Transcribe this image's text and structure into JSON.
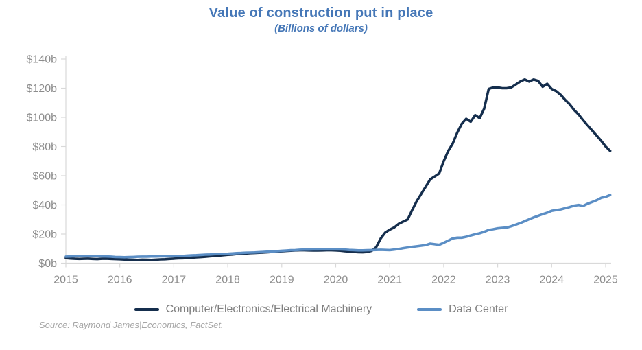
{
  "header": {
    "title": "Value of construction put in place",
    "subtitle": "(Billions of dollars)"
  },
  "legend": [
    {
      "label": "Computer/Electronics/Electrical Machinery",
      "color": "#152e4d"
    },
    {
      "label": "Data Center",
      "color": "#5b8ec5"
    }
  ],
  "source": "Source: Raymond James|Economics, FactSet.",
  "colors": {
    "title_blue": "#4577b7",
    "series_dark_navy": "#152e4d",
    "series_light_blue": "#5b8ec5",
    "axis_line_gray": "#d9d9d9",
    "axis_label_gray": "#8c8c8c",
    "legend_text_gray": "#7f7f7f",
    "source_text_gray": "#a6a6a6",
    "background": "#ffffff"
  },
  "chart_data": {
    "type": "line",
    "title": "Value of construction put in place",
    "subtitle": "(Billions of dollars)",
    "grid": false,
    "legend_position": "bottom",
    "x_axis": {
      "start_year": 2015,
      "interval": "monthly",
      "tick_labels": [
        "2015",
        "2016",
        "2017",
        "2018",
        "2019",
        "2020",
        "2021",
        "2022",
        "2023",
        "2024",
        "2025"
      ]
    },
    "y_axis": {
      "min": 0,
      "max": 140,
      "step": 20,
      "tick_labels": [
        "$0b",
        "$20b",
        "$40b",
        "$60b",
        "$80b",
        "$100b",
        "$120b",
        "$140b"
      ]
    },
    "series": [
      {
        "name": "Computer/Electronics/Electrical Machinery",
        "color": "#152e4d",
        "values": [
          3.5,
          3.2,
          3.0,
          2.9,
          3.0,
          3.1,
          2.9,
          2.8,
          3.0,
          3.1,
          2.9,
          2.8,
          2.7,
          2.5,
          2.4,
          2.3,
          2.2,
          2.4,
          2.3,
          2.2,
          2.4,
          2.6,
          2.7,
          2.9,
          3.1,
          3.3,
          3.4,
          3.6,
          3.8,
          4.0,
          4.2,
          4.4,
          4.7,
          5.0,
          5.2,
          5.5,
          5.8,
          6.0,
          6.3,
          6.5,
          6.7,
          6.9,
          7.0,
          7.2,
          7.4,
          7.6,
          7.8,
          8.0,
          8.2,
          8.4,
          8.6,
          8.8,
          8.9,
          8.9,
          8.8,
          8.7,
          8.7,
          8.8,
          8.9,
          8.9,
          8.8,
          8.6,
          8.3,
          8.0,
          7.8,
          7.6,
          7.5,
          7.7,
          8.5,
          11.0,
          17.0,
          21.0,
          23.0,
          24.5,
          27.0,
          28.5,
          30.0,
          36.5,
          42.5,
          47.5,
          52.5,
          57.5,
          59.5,
          61.5,
          70.0,
          77.0,
          82.0,
          89.5,
          95.5,
          99.0,
          97.0,
          101.5,
          99.5,
          106.0,
          119.5,
          120.5,
          120.5,
          120.0,
          120.0,
          120.5,
          122.5,
          124.5,
          126.0,
          124.5,
          126.0,
          125.0,
          121.0,
          123.0,
          119.5,
          118.0,
          115.5,
          112.0,
          109.0,
          105.0,
          102.0,
          98.0,
          94.5,
          91.0,
          87.5,
          84.0,
          80.0,
          77.0
        ]
      },
      {
        "name": "Data Center",
        "color": "#5b8ec5",
        "values": [
          4.5,
          4.6,
          4.8,
          4.9,
          5.0,
          5.0,
          4.9,
          4.8,
          4.7,
          4.6,
          4.5,
          4.3,
          4.2,
          4.1,
          4.2,
          4.3,
          4.4,
          4.5,
          4.5,
          4.6,
          4.6,
          4.7,
          4.7,
          4.8,
          4.8,
          4.9,
          5.0,
          5.2,
          5.4,
          5.5,
          5.7,
          5.9,
          6.0,
          6.2,
          6.3,
          6.4,
          6.5,
          6.7,
          6.9,
          7.0,
          7.2,
          7.3,
          7.4,
          7.6,
          7.7,
          7.9,
          8.1,
          8.3,
          8.5,
          8.7,
          8.9,
          9.0,
          9.2,
          9.3,
          9.3,
          9.4,
          9.4,
          9.5,
          9.5,
          9.5,
          9.5,
          9.4,
          9.3,
          9.1,
          9.0,
          8.8,
          8.8,
          8.9,
          9.0,
          9.1,
          9.2,
          9.1,
          9.0,
          9.3,
          9.7,
          10.3,
          10.8,
          11.2,
          11.6,
          12.0,
          12.4,
          13.4,
          13.0,
          12.6,
          14.0,
          15.5,
          17.0,
          17.5,
          17.5,
          18.1,
          19.0,
          19.8,
          20.5,
          21.5,
          22.8,
          23.3,
          23.9,
          24.2,
          24.4,
          25.3,
          26.4,
          27.5,
          28.8,
          30.1,
          31.4,
          32.5,
          33.6,
          34.6,
          35.9,
          36.4,
          36.9,
          37.7,
          38.5,
          39.5,
          39.9,
          39.3,
          40.8,
          42.0,
          43.2,
          44.8,
          45.5,
          46.8
        ]
      }
    ]
  }
}
